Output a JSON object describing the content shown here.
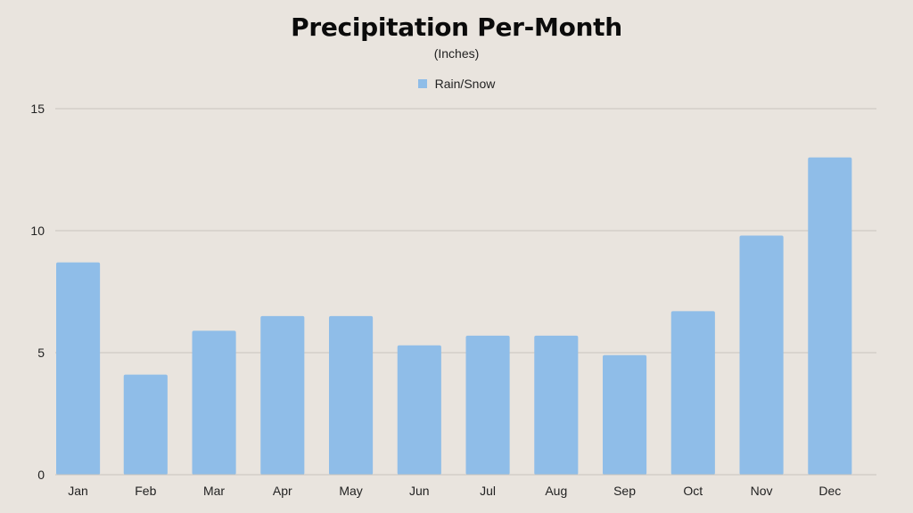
{
  "chart_data": {
    "type": "bar",
    "title": "Precipitation Per-Month",
    "subtitle": "(Inches)",
    "categories": [
      "Jan",
      "Feb",
      "Mar",
      "Apr",
      "May",
      "Jun",
      "Jul",
      "Aug",
      "Sep",
      "Oct",
      "Nov",
      "Dec"
    ],
    "series": [
      {
        "name": "Rain/Snow",
        "color": "#8fbde8",
        "values": [
          8.7,
          4.1,
          5.9,
          6.5,
          6.5,
          5.3,
          5.7,
          5.7,
          4.9,
          6.7,
          9.8,
          13.0
        ]
      }
    ],
    "ylim": [
      0,
      15
    ],
    "yticks": [
      "0",
      "5",
      "10",
      "15"
    ],
    "grid": true,
    "legend_position": "top-center",
    "colors": {
      "background": "#e9e4de",
      "gridline": "#c9c4bd",
      "text": "#222222"
    }
  }
}
